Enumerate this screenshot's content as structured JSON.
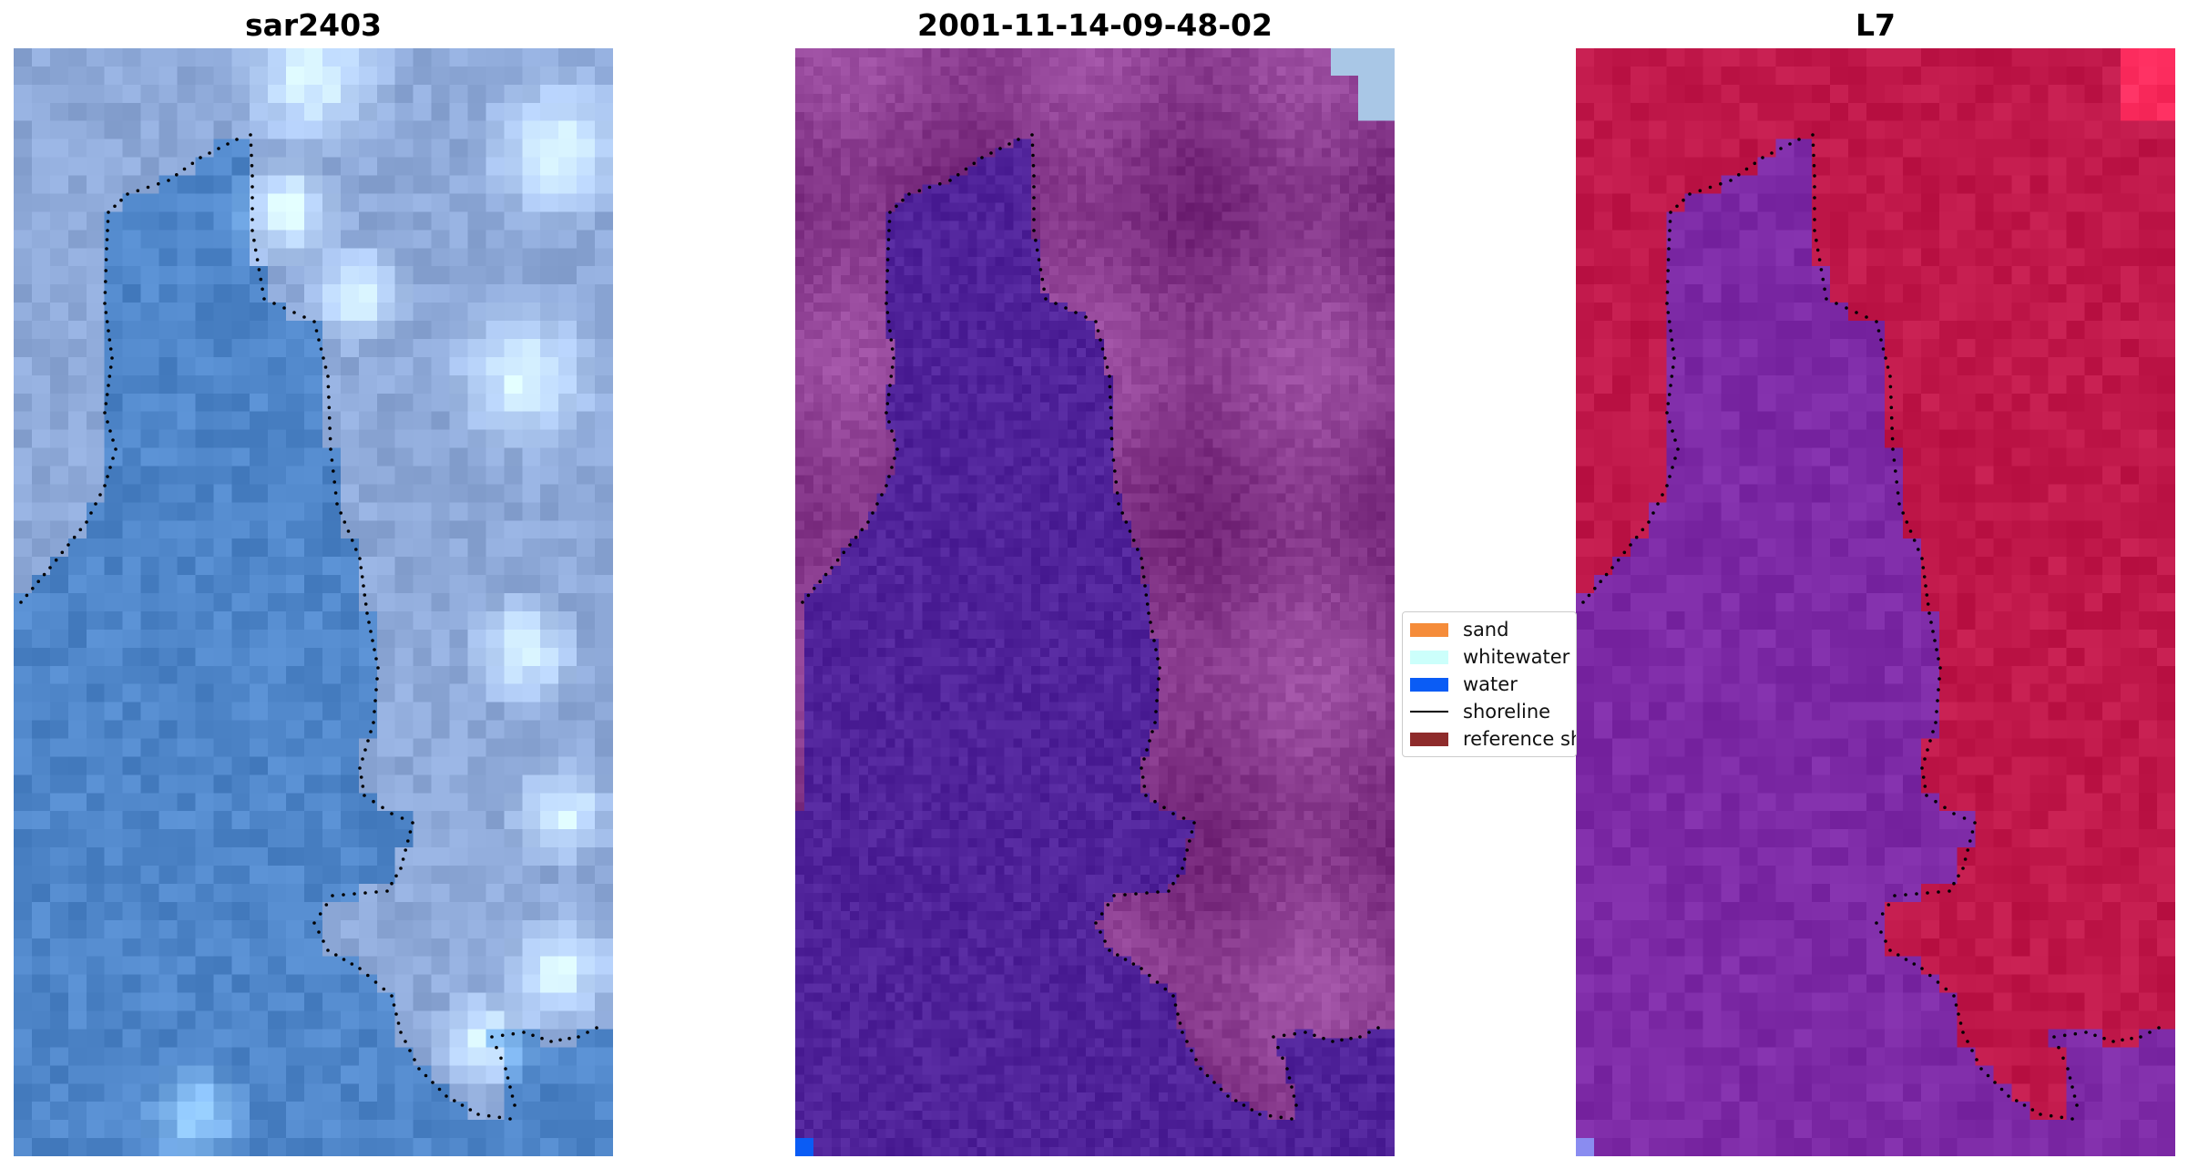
{
  "panels": [
    {
      "title": "sar2403",
      "kind": "rgb"
    },
    {
      "title": "2001-11-14-09-48-02",
      "kind": "classified"
    },
    {
      "title": "L7",
      "kind": "falsecolor"
    }
  ],
  "legend": {
    "items": [
      {
        "label": "sand",
        "color": "#f58c3a",
        "type": "patch"
      },
      {
        "label": "whitewater",
        "color": "#ccfffb",
        "type": "patch"
      },
      {
        "label": "water",
        "color": "#0a5cf5",
        "type": "patch"
      },
      {
        "label": "shoreline",
        "color": "#000000",
        "type": "line"
      },
      {
        "label": "reference sh",
        "color": "#8e2b2b",
        "type": "patch"
      }
    ]
  },
  "colors": {
    "rgb_water": "#4f86c9",
    "rgb_land": "#8ea9d8",
    "classified_water": "#50239a",
    "classified_land": "#7e3f88",
    "falsecolor_water": "#7d2aa6",
    "falsecolor_land": "#c0184a"
  }
}
